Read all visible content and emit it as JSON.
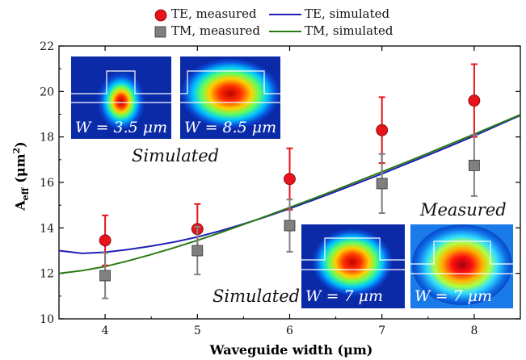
{
  "chart_data": {
    "type": "scatter",
    "xlabel": "Waveguide width (μm)",
    "ylabel_main": "A",
    "ylabel_sub": "eff",
    "ylabel_unit_open": " (μm",
    "ylabel_unit_sup": "2",
    "ylabel_unit_close": ")",
    "xlim": [
      3.5,
      8.5
    ],
    "ylim": [
      10,
      22
    ],
    "xticks": [
      4,
      5,
      6,
      7,
      8
    ],
    "yticks": [
      10,
      12,
      14,
      16,
      18,
      20,
      22
    ],
    "grid": false,
    "legend_position": "top",
    "series": [
      {
        "name": "TE, measured",
        "kind": "points",
        "marker": "circle",
        "color": "#e8141b",
        "x": [
          4,
          5,
          6,
          7,
          8
        ],
        "y": [
          13.45,
          13.95,
          16.15,
          18.3,
          19.6
        ],
        "err": [
          1.1,
          1.1,
          1.35,
          1.45,
          1.6
        ]
      },
      {
        "name": "TM, measured",
        "kind": "points",
        "marker": "square",
        "color": "#808080",
        "x": [
          4,
          5,
          6,
          7,
          8
        ],
        "y": [
          11.9,
          13.0,
          14.1,
          15.95,
          16.75
        ],
        "err": [
          1.0,
          1.05,
          1.15,
          1.3,
          1.35
        ]
      },
      {
        "name": "TE, simulated",
        "kind": "line",
        "color": "#1f1fb4",
        "x": [
          3.5,
          3.75,
          4.0,
          4.25,
          4.5,
          4.75,
          5.0,
          5.25,
          5.5,
          5.75,
          6.0,
          6.25,
          6.5,
          6.75,
          7.0,
          7.25,
          7.5,
          7.75,
          8.0,
          8.25,
          8.5
        ],
        "y": [
          13.0,
          12.88,
          12.93,
          13.05,
          13.2,
          13.38,
          13.6,
          13.87,
          14.17,
          14.5,
          14.85,
          15.22,
          15.6,
          15.99,
          16.38,
          16.79,
          17.2,
          17.62,
          18.05,
          18.5,
          18.95
        ]
      },
      {
        "name": "TM, simulated",
        "kind": "line",
        "color": "#2a7a16",
        "x": [
          3.5,
          3.75,
          4.0,
          4.25,
          4.5,
          4.75,
          5.0,
          5.25,
          5.5,
          5.75,
          6.0,
          6.25,
          6.5,
          6.75,
          7.0,
          7.25,
          7.5,
          7.75,
          8.0,
          8.25,
          8.5
        ],
        "y": [
          12.0,
          12.12,
          12.3,
          12.55,
          12.83,
          13.13,
          13.45,
          13.79,
          14.15,
          14.52,
          14.9,
          15.28,
          15.67,
          16.07,
          16.47,
          16.87,
          17.28,
          17.7,
          18.12,
          18.55,
          18.98
        ]
      }
    ],
    "insets": {
      "top_left_1": {
        "label": "W = 3.5 μm"
      },
      "top_left_2": {
        "label": "W = 8.5 μm"
      },
      "bottom_right_1": {
        "label": "W = 7 μm"
      },
      "bottom_right_2": {
        "label": "W = 7 μm"
      }
    },
    "annotations": {
      "simulated_top": "Simulated",
      "simulated_bottom": "Simulated",
      "measured": "Measured"
    }
  }
}
